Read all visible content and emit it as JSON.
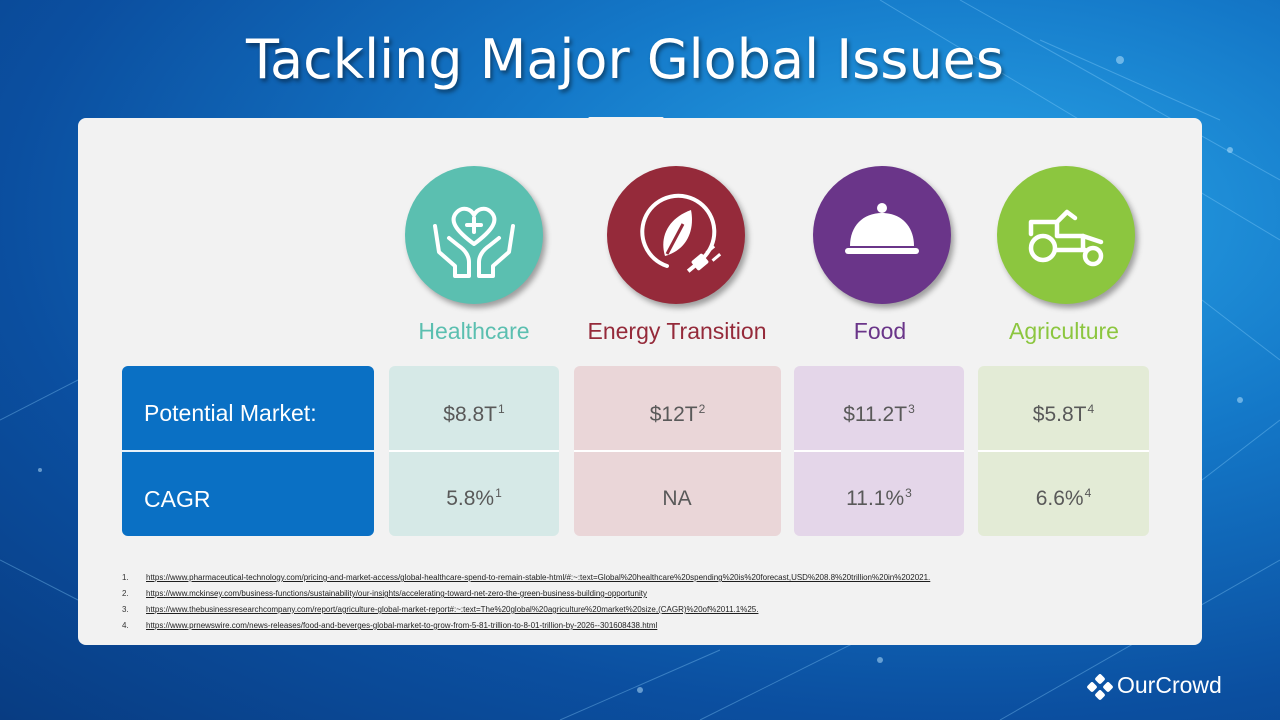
{
  "slide": {
    "title": "Tackling Major Global Issues"
  },
  "columns": [
    {
      "label": "Healthcare",
      "color": "#5bbfb0",
      "cell_bg": "#d6e9e7",
      "market": "$8.8T",
      "market_ref": "1",
      "cagr": "5.8%",
      "cagr_ref": "1",
      "icon": "heart-hands-icon"
    },
    {
      "label": "Energy Transition",
      "color": "#952a3a",
      "cell_bg": "#ead6d8",
      "market": "$12T",
      "market_ref": "2",
      "cagr": "NA",
      "cagr_ref": "",
      "icon": "leaf-plug-icon"
    },
    {
      "label": "Food",
      "color": "#6a3589",
      "cell_bg": "#e4d6e9",
      "market": "$11.2T",
      "market_ref": "3",
      "cagr": "11.1%",
      "cagr_ref": "3",
      "icon": "food-cloche-icon"
    },
    {
      "label": "Agriculture",
      "color": "#8cc63f",
      "cell_bg": "#e3ebd6",
      "market": "$5.8T",
      "market_ref": "4",
      "cagr": "6.6%",
      "cagr_ref": "4",
      "icon": "tractor-icon"
    }
  ],
  "rows": {
    "market_label": "Potential Market:",
    "cagr_label": "CAGR"
  },
  "references": [
    {
      "num": "1.",
      "url": "https://www.pharmaceutical-technology.com/pricing-and-market-access/global-healthcare-spend-to-remain-stable-html/#:~:text=Global%20healthcare%20spending%20is%20forecast,USD%208.8%20trillion%20in%202021."
    },
    {
      "num": "2.",
      "url": "https://www.mckinsey.com/business-functions/sustainability/our-insights/accelerating-toward-net-zero-the-green-business-building-opportunity"
    },
    {
      "num": "3.",
      "url": "https://www.thebusinessresearchcompany.com/report/agriculture-global-market-report#:~:text=The%20global%20agriculture%20market%20size,(CAGR)%20of%2011.1%25."
    },
    {
      "num": "4.",
      "url": "https://www.prnewswire.com/news-releases/food-and-beverges-global-market-to-grow-from-5-81-trillion-to-8-01-trillion-by-2026--301608438.html"
    }
  ],
  "brand": {
    "name": "OurCrowd",
    "icon": "ourcrowd-logo-icon"
  },
  "colors": {
    "row_header": "#0a70c4",
    "panel": "#f2f2f2"
  }
}
